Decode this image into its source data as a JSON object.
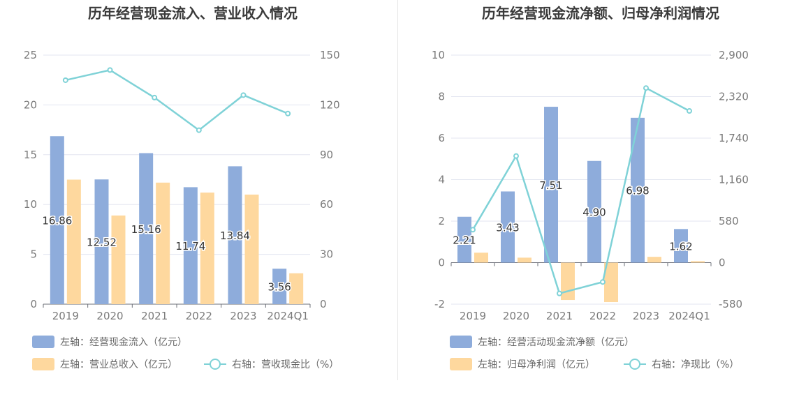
{
  "colors": {
    "bar_primary": "#8eacdb",
    "bar_secondary": "#fed89e",
    "line": "#7fd2d7",
    "grid": "#e3e6f0",
    "axis_text": "#7a7a7a",
    "title_text": "#3a3a3a"
  },
  "chart_data": [
    {
      "type": "bar",
      "title": "历年经营现金流入、营业收入情况",
      "categories": [
        "2019",
        "2020",
        "2021",
        "2022",
        "2023",
        "2024Q1"
      ],
      "left_axis": {
        "ticks": [
          "0",
          "5",
          "10",
          "15",
          "20",
          "25"
        ],
        "ylim": [
          0,
          25
        ]
      },
      "right_axis": {
        "ticks": [
          "0",
          "30",
          "60",
          "90",
          "120",
          "150"
        ],
        "ylim": [
          0,
          150
        ]
      },
      "series": [
        {
          "name": "左轴：经营现金流入（亿元）",
          "type": "bar",
          "axis": "left",
          "values": [
            16.86,
            12.52,
            15.16,
            11.74,
            13.84,
            3.56
          ],
          "labels": [
            "16.86",
            "12.52",
            "15.16",
            "11.74",
            "13.84",
            "3.56"
          ]
        },
        {
          "name": "左轴：营业总收入（亿元）",
          "type": "bar",
          "axis": "left",
          "values": [
            12.5,
            8.9,
            12.2,
            11.2,
            11.0,
            3.1
          ]
        },
        {
          "name": "右轴：营收现金比（%）",
          "type": "line",
          "axis": "right",
          "values": [
            134.9,
            141.0,
            124.4,
            104.8,
            125.9,
            114.8
          ]
        }
      ]
    },
    {
      "type": "bar",
      "title": "历年经营现金流净额、归母净利润情况",
      "categories": [
        "2019",
        "2020",
        "2021",
        "2022",
        "2023",
        "2024Q1"
      ],
      "left_axis": {
        "ticks": [
          "-2",
          "0",
          "2",
          "4",
          "6",
          "8",
          "10"
        ],
        "ylim": [
          -2,
          10
        ]
      },
      "right_axis": {
        "ticks": [
          "-580",
          "0",
          "580",
          "1,160",
          "1,740",
          "2,320",
          "2,900"
        ],
        "ylim": [
          -580,
          2900
        ]
      },
      "series": [
        {
          "name": "左轴：经营活动现金流净额（亿元）",
          "type": "bar",
          "axis": "left",
          "values": [
            2.21,
            3.43,
            7.51,
            4.9,
            6.98,
            1.62
          ],
          "labels": [
            "2.21",
            "3.43",
            "7.51",
            "4.90",
            "6.98",
            "1.62"
          ]
        },
        {
          "name": "左轴：归母净利润（亿元）",
          "type": "bar",
          "axis": "left",
          "values": [
            0.48,
            0.24,
            -1.8,
            -1.9,
            0.28,
            0.07
          ]
        },
        {
          "name": "右轴：净现比（%）",
          "type": "line",
          "axis": "right",
          "values": [
            460,
            1490,
            -430,
            -270,
            2440,
            2120
          ]
        }
      ]
    }
  ]
}
